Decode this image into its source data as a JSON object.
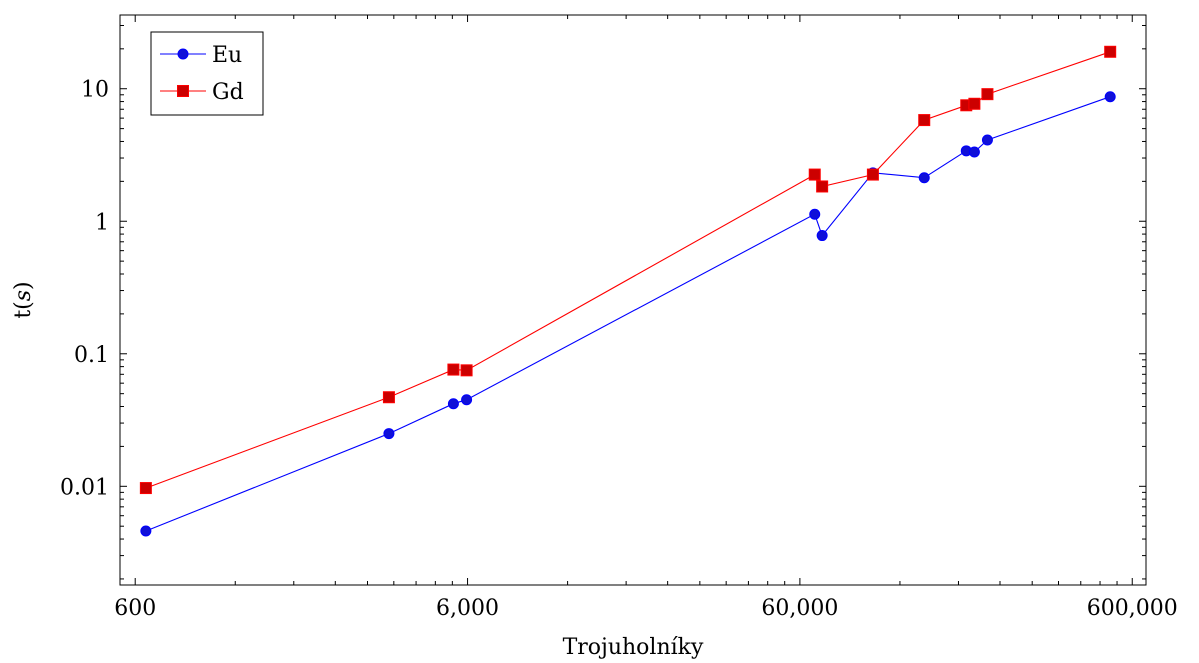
{
  "chart_data": {
    "type": "line",
    "title": "",
    "xlabel": "Trojuholníky",
    "ylabel": "t(s)",
    "x_scale": "log",
    "y_scale": "log",
    "xlim": [
      540,
      660000
    ],
    "ylim": [
      0.0018,
      36
    ],
    "x_ticks": [
      600,
      6000,
      60000,
      600000
    ],
    "x_tick_labels": [
      "600",
      "6,000",
      "60,000",
      "600,000"
    ],
    "y_ticks": [
      0.01,
      0.1,
      1,
      10
    ],
    "y_tick_labels": [
      "0.01",
      "0.1",
      "1",
      "10"
    ],
    "grid": false,
    "legend_position": "top-left",
    "series": [
      {
        "name": "Eu",
        "color": "#0000ff",
        "marker": "circle",
        "x": [
          646,
          3480,
          5440,
          5960,
          66500,
          70000,
          99500,
          142000,
          190000,
          201000,
          220000,
          515000
        ],
        "y": [
          0.0046,
          0.025,
          0.042,
          0.045,
          1.13,
          0.78,
          2.32,
          2.13,
          3.4,
          3.33,
          4.1,
          8.7
        ]
      },
      {
        "name": "Gd",
        "color": "#ff0000",
        "marker": "square",
        "x": [
          646,
          3480,
          5440,
          5960,
          66500,
          70000,
          99500,
          142000,
          190000,
          201000,
          220000,
          515000
        ],
        "y": [
          0.0097,
          0.047,
          0.076,
          0.075,
          2.25,
          1.83,
          2.25,
          5.8,
          7.5,
          7.7,
          9.1,
          19
        ]
      }
    ]
  }
}
